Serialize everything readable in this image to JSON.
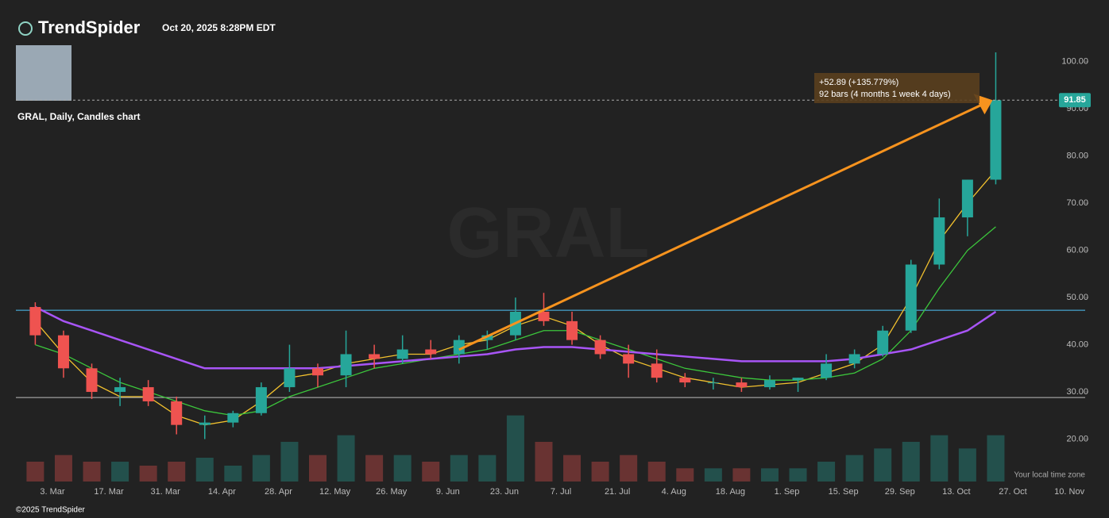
{
  "header": {
    "brand": "TrendSpider",
    "timestamp": "Oct 20, 2025 8:28PM EDT"
  },
  "chart_data": {
    "type": "candlestick",
    "title": "GRAL, Daily, Candles chart",
    "watermark": "GRAL",
    "categories": [
      null,
      "3. Mar",
      null,
      "17. Mar",
      null,
      "31. Mar",
      null,
      "14. Apr",
      null,
      "28. Apr",
      null,
      "12. May",
      null,
      "26. May",
      null,
      "9. Jun",
      null,
      "23. Jun",
      null,
      "7. Jul",
      null,
      "21. Jul",
      null,
      "4. Aug",
      null,
      "18. Aug",
      null,
      "1. Sep",
      null,
      "15. Sep",
      null,
      "29. Sep",
      null,
      "13. Oct",
      null,
      "27. Oct",
      null,
      "10. Nov"
    ],
    "open": [
      48,
      42,
      35,
      30,
      31,
      28,
      23,
      23.5,
      25.5,
      31,
      35,
      33.5,
      38,
      37,
      39,
      38,
      41,
      42,
      47,
      45,
      41,
      38,
      36,
      33,
      32,
      32,
      31,
      32.5,
      33,
      36,
      38,
      43,
      57,
      67,
      75,
      null,
      null,
      null
    ],
    "high": [
      49,
      43,
      36,
      33,
      32.5,
      29,
      25,
      26,
      32,
      40,
      36,
      43,
      40,
      42,
      41,
      42,
      43,
      50,
      51,
      47,
      42,
      40,
      39,
      34,
      33,
      33,
      33.5,
      33,
      38,
      39,
      44,
      58,
      71,
      75,
      102,
      null,
      null,
      null
    ],
    "low": [
      40,
      33,
      28.5,
      27,
      27,
      21,
      20,
      22.5,
      25,
      30,
      31,
      31,
      35,
      36,
      37,
      36,
      39,
      41,
      44,
      40,
      37,
      33,
      32,
      31,
      30.5,
      30,
      30.5,
      30,
      32.5,
      35,
      37.5,
      42.5,
      56,
      63,
      74,
      null,
      null,
      null
    ],
    "close": [
      42,
      35,
      30,
      31,
      28,
      23,
      23.5,
      25.5,
      31,
      35,
      33.5,
      38,
      37,
      39,
      38,
      41,
      42,
      47,
      45,
      41,
      38,
      36,
      33,
      32,
      32,
      31,
      32.5,
      33,
      36,
      38,
      43,
      57,
      67,
      75,
      91.85,
      null,
      null,
      null
    ],
    "up_color": "#26a69a",
    "down_color": "#ef5350",
    "series": [
      {
        "color": "#f2c12e",
        "values": [
          45,
          38,
          32,
          29,
          29,
          25,
          23,
          24,
          28,
          33,
          34,
          36,
          37,
          38,
          38,
          40,
          41,
          44,
          46,
          44,
          40,
          37,
          35,
          33,
          32,
          31,
          31.5,
          32,
          34,
          36,
          40,
          50,
          62,
          70,
          77,
          null,
          null,
          null
        ]
      },
      {
        "color": "#3cc73c",
        "values": [
          40,
          38,
          35,
          32,
          30,
          28,
          26,
          25,
          26,
          29,
          31,
          33,
          35,
          36,
          37,
          38,
          39,
          41,
          43,
          43,
          41,
          39,
          37,
          35,
          34,
          33,
          32.5,
          32.5,
          33,
          34,
          37,
          43,
          52,
          60,
          65,
          null,
          null,
          null
        ]
      },
      {
        "color": "#a855f7",
        "values": [
          48,
          45,
          43,
          41,
          39,
          37,
          35,
          35,
          35,
          35,
          35,
          35.5,
          36,
          36.5,
          37,
          37.5,
          38,
          39,
          39.5,
          39.5,
          39,
          38.5,
          38,
          37.5,
          37,
          36.5,
          36.5,
          36.5,
          36.5,
          37,
          38,
          39,
          41,
          43,
          47,
          null,
          null,
          null
        ]
      }
    ],
    "volume": [
      1.5,
      2,
      1.5,
      1.5,
      1.2,
      1.5,
      1.8,
      1.2,
      2,
      3,
      2,
      3.5,
      2,
      2,
      1.5,
      2,
      2,
      5,
      3,
      2,
      1.5,
      2,
      1.5,
      1,
      1,
      1,
      1,
      1,
      1.5,
      2,
      2.5,
      3,
      3.5,
      2.5,
      3.5,
      null,
      null,
      null
    ],
    "y2lim": [
      0,
      6
    ],
    "levels": [
      {
        "value": 47.3,
        "color": "#4fc3f7"
      },
      {
        "value": 28.8,
        "color": "#bdbdbd"
      }
    ],
    "last_price": 91.85,
    "measure": {
      "start": 38.96,
      "end": 91.85,
      "label": "+52.89 (+135.779%)",
      "detail": "92 bars (4 months 1 week 4 days)"
    },
    "ylim": [
      11,
      103
    ],
    "yticks": [
      {
        "value": 20,
        "label": "20.00"
      },
      {
        "value": 30,
        "label": "30.00"
      },
      {
        "value": 40,
        "label": "40.00"
      },
      {
        "value": 50,
        "label": "50.00"
      },
      {
        "value": 60,
        "label": "60.00"
      },
      {
        "value": 70,
        "label": "70.00"
      },
      {
        "value": 80,
        "label": "80.00"
      },
      {
        "value": 90,
        "label": "90.00"
      },
      {
        "value": 100,
        "label": "100.00"
      }
    ],
    "timezone_note": "Your local time zone"
  },
  "footer": {
    "copyright": "©2025 TrendSpider"
  }
}
